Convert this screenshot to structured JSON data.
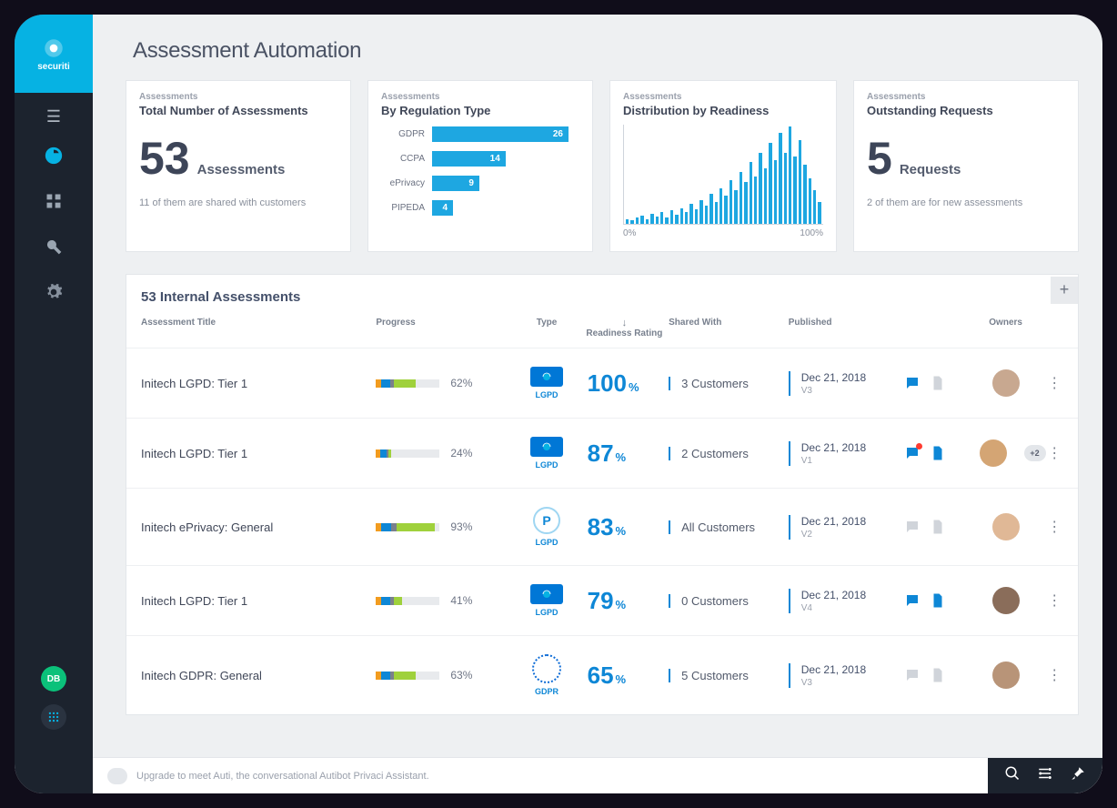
{
  "brand": "securiti",
  "page_title": "Assessment Automation",
  "colors": {
    "accent": "#06b2e3",
    "bar": "#1ea7e1",
    "link_blue": "#0e87d6",
    "sidebar_bg": "#1c232e",
    "page_bg": "#eef0f2",
    "card_border": "#e3e6ea"
  },
  "sidebar": {
    "user_initials": "DB"
  },
  "cards": {
    "total": {
      "label": "Assessments",
      "title": "Total Number of Assessments",
      "number": "53",
      "unit": "Assessments",
      "note": "11 of them are shared with customers"
    },
    "regulation": {
      "label": "Assessments",
      "title": "By Regulation Type",
      "max": 26,
      "bars": [
        {
          "label": "GDPR",
          "value": 26
        },
        {
          "label": "CCPA",
          "value": 14
        },
        {
          "label": "ePrivacy",
          "value": 9
        },
        {
          "label": "PIPEDA",
          "value": 4
        }
      ]
    },
    "distribution": {
      "label": "Assessments",
      "title": "Distribution by Readiness",
      "x_min": "0%",
      "x_max": "100%",
      "values": [
        5,
        4,
        6,
        8,
        5,
        10,
        7,
        12,
        6,
        14,
        9,
        16,
        12,
        20,
        15,
        24,
        18,
        30,
        22,
        36,
        28,
        44,
        34,
        52,
        42,
        62,
        48,
        72,
        56,
        82,
        64,
        92,
        72,
        98,
        68,
        84,
        60,
        46,
        34,
        22
      ]
    },
    "outstanding": {
      "label": "Assessments",
      "title": "Outstanding Requests",
      "number": "5",
      "unit": "Requests",
      "note": "2 of them are for new assessments"
    }
  },
  "table": {
    "heading": "53 Internal Assessments",
    "columns": {
      "title": "Assessment Title",
      "progress": "Progress",
      "type": "Type",
      "readiness": "Readiness Rating",
      "shared": "Shared With",
      "published": "Published",
      "owners": "Owners"
    },
    "progress_colors": [
      "#f29c1f",
      "#0e87d6",
      "#7a808c",
      "#9fd13c"
    ],
    "rows": [
      {
        "title": "Initech LGPD: Tier 1",
        "progress_pct": "62%",
        "progress_segments": [
          8,
          14,
          6,
          34
        ],
        "type_label": "LGPD",
        "type_kind": "flag",
        "readiness": "100",
        "shared": "3 Customers",
        "pub_date": "Dec 21, 2018",
        "pub_ver": "V3",
        "chat_active": true,
        "doc_active": false,
        "chat_notif": false,
        "extra_owners": ""
      },
      {
        "title": "Initech LGPD: Tier 1",
        "progress_pct": "24%",
        "progress_segments": [
          6,
          10,
          4,
          4
        ],
        "type_label": "LGPD",
        "type_kind": "flag",
        "readiness": "87",
        "shared": "2 Customers",
        "pub_date": "Dec 21, 2018",
        "pub_ver": "V1",
        "chat_active": true,
        "doc_active": true,
        "chat_notif": true,
        "extra_owners": "+2"
      },
      {
        "title": "Initech ePrivacy: General",
        "progress_pct": "93%",
        "progress_segments": [
          8,
          16,
          8,
          61
        ],
        "type_label": "LGPD",
        "type_kind": "circle",
        "readiness": "83",
        "shared": "All Customers",
        "pub_date": "Dec 21, 2018",
        "pub_ver": "V2",
        "chat_active": false,
        "doc_active": false,
        "chat_notif": false,
        "extra_owners": ""
      },
      {
        "title": "Initech LGPD: Tier 1",
        "progress_pct": "41%",
        "progress_segments": [
          8,
          14,
          6,
          13
        ],
        "type_label": "LGPD",
        "type_kind": "flag",
        "readiness": "79",
        "shared": "0 Customers",
        "pub_date": "Dec 21, 2018",
        "pub_ver": "V4",
        "chat_active": true,
        "doc_active": true,
        "chat_notif": false,
        "extra_owners": ""
      },
      {
        "title": "Initech GDPR: General",
        "progress_pct": "63%",
        "progress_segments": [
          8,
          14,
          6,
          35
        ],
        "type_label": "GDPR",
        "type_kind": "eu",
        "readiness": "65",
        "shared": "5 Customers",
        "pub_date": "Dec 21, 2018",
        "pub_ver": "V3",
        "chat_active": false,
        "doc_active": false,
        "chat_notif": false,
        "extra_owners": ""
      }
    ]
  },
  "bottombar": {
    "message": "Upgrade to meet Auti, the conversational Autibot Privaci Assistant."
  }
}
